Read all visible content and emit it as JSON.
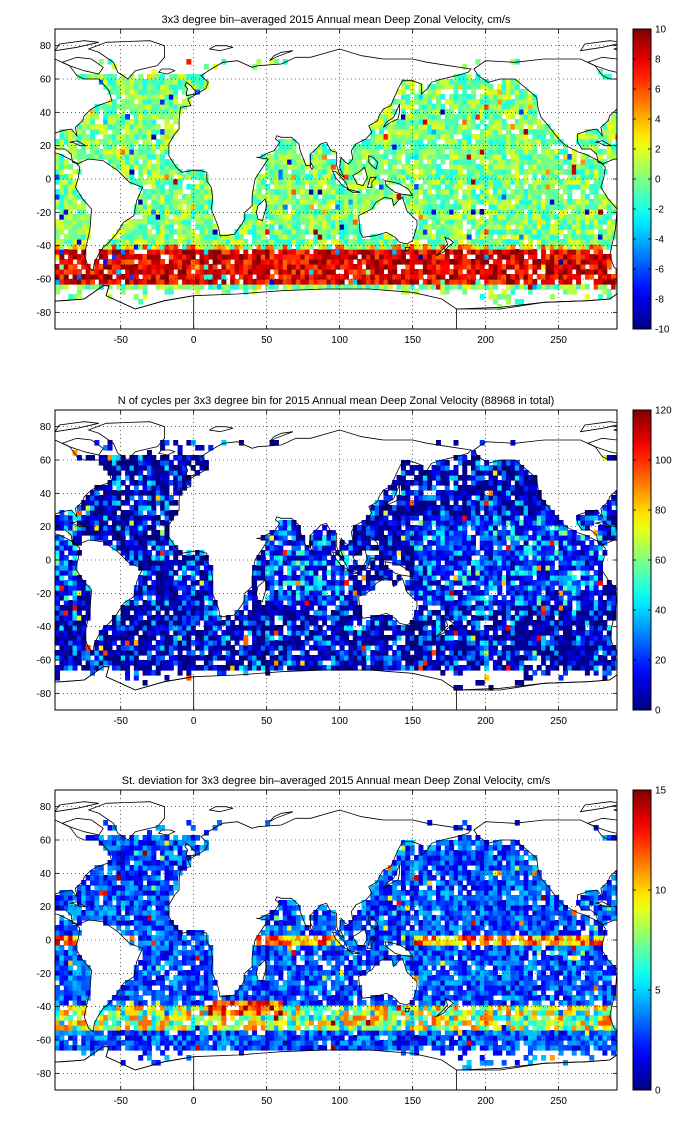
{
  "chart_data": [
    {
      "type": "heatmap",
      "title": "3x3 degree bin–averaged 2015 Annual mean Deep Zonal Velocity, cm/s",
      "xlim": [
        -95,
        290
      ],
      "ylim": [
        -90,
        90
      ],
      "xticks": [
        "-50",
        "0",
        "50",
        "100",
        "150",
        "200",
        "250"
      ],
      "yticks": [
        "80",
        "60",
        "40",
        "20",
        "0",
        "-20",
        "-40",
        "-60",
        "-80"
      ],
      "bin_size_deg": 3,
      "colormap": "jet",
      "colorbar": {
        "min": -10,
        "max": 10,
        "ticks": [
          "10",
          "8",
          "6",
          "4",
          "2",
          "0",
          "-2",
          "-4",
          "-6",
          "-8",
          "-10"
        ]
      },
      "features": [
        "mostly near-zero velocities (green/cyan) over open oceans",
        "strong positive eastward band (orange to dark red, 6–10) along the Antarctic Circumpolar Current near 45–60S",
        "scattered positive and negative bins in North Pacific and Atlantic"
      ],
      "grid": true
    },
    {
      "type": "heatmap",
      "title": "N of cycles per 3x3 degree bin for 2015 Annual mean Deep Zonal Velocity (88968 in total)",
      "xlim": [
        -95,
        290
      ],
      "ylim": [
        -90,
        90
      ],
      "xticks": [
        "-50",
        "0",
        "50",
        "100",
        "150",
        "200",
        "250"
      ],
      "yticks": [
        "80",
        "60",
        "40",
        "20",
        "0",
        "-20",
        "-40",
        "-60",
        "-80"
      ],
      "bin_size_deg": 3,
      "colormap": "jet",
      "colorbar": {
        "min": 0,
        "max": 120,
        "ticks": [
          "120",
          "100",
          "80",
          "60",
          "40",
          "20",
          "0"
        ]
      },
      "total_cycles": 88968,
      "features": [
        "most bins have low counts (dark blue, under 20)",
        "higher counts (20–60, cyan to yellow) scattered in equatorial and subtropical Pacific, Indian Ocean and western Atlantic"
      ],
      "grid": true
    },
    {
      "type": "heatmap",
      "title": "St. deviation for 3x3 degree bin–averaged 2015 Annual mean Deep Zonal Velocity, cm/s",
      "xlim": [
        -95,
        290
      ],
      "ylim": [
        -90,
        90
      ],
      "xticks": [
        "-50",
        "0",
        "50",
        "100",
        "150",
        "200",
        "250"
      ],
      "yticks": [
        "80",
        "60",
        "40",
        "20",
        "0",
        "-20",
        "-40",
        "-60",
        "-80"
      ],
      "bin_size_deg": 3,
      "colormap": "jet",
      "colorbar": {
        "min": 0,
        "max": 15,
        "ticks": [
          "15",
          "10",
          "5",
          "0"
        ]
      },
      "features": [
        "low standard deviation (blue) over most of the ocean",
        "elevated variability (yellow to red) along the equator in the Pacific and Indian Oceans",
        "high variability along the Antarctic Circumpolar Current and the Agulhas region near 40S"
      ],
      "grid": true
    }
  ]
}
